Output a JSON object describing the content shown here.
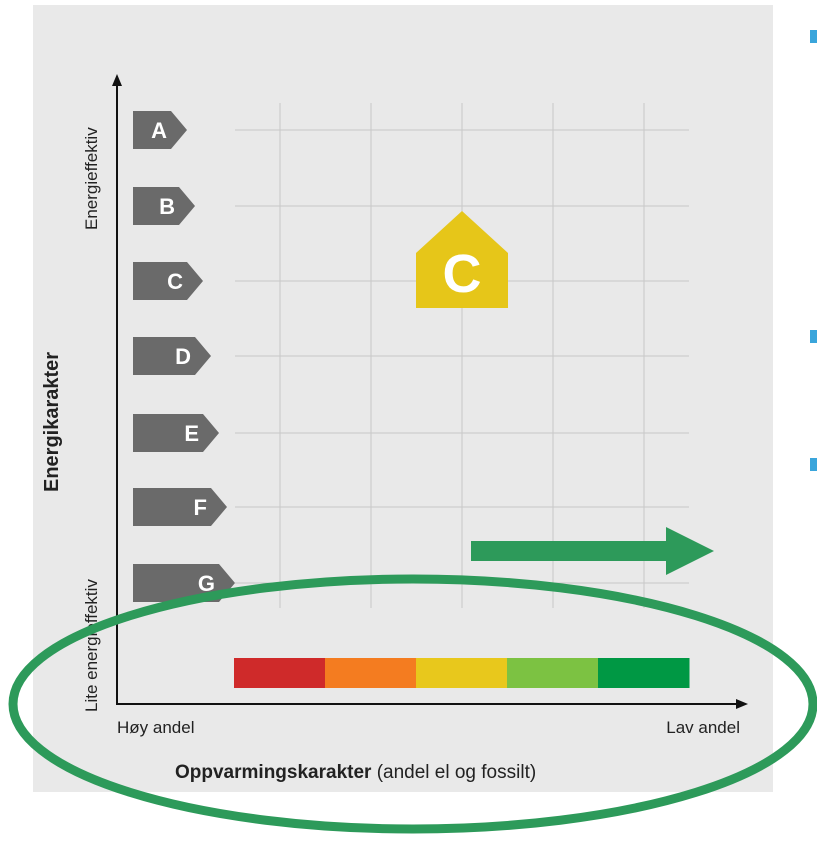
{
  "y_axis": {
    "title": "Energikarakter",
    "top_label": "Energieffektiv",
    "bottom_label": "Lite energieffektiv"
  },
  "x_axis": {
    "title_bold": "Oppvarmingskarakter",
    "title_rest": " (andel el og fossilt)",
    "left_label": "Høy andel",
    "right_label": "Lav andel"
  },
  "energy_grades": [
    "A",
    "B",
    "C",
    "D",
    "E",
    "F",
    "G"
  ],
  "house_badge": {
    "letter": "C",
    "color": "#e6c619"
  },
  "heating_scale": {
    "colors": [
      "#cf2a2a",
      "#f47c20",
      "#e8c81c",
      "#7cc242",
      "#009844"
    ]
  },
  "annotations": {
    "ellipse_color": "#2d9a5a",
    "arrow_color": "#2d9a5a"
  },
  "colors": {
    "tag": "#6a6a6a",
    "grid": "#c8c8c8",
    "bullet": "#3aa5db"
  }
}
